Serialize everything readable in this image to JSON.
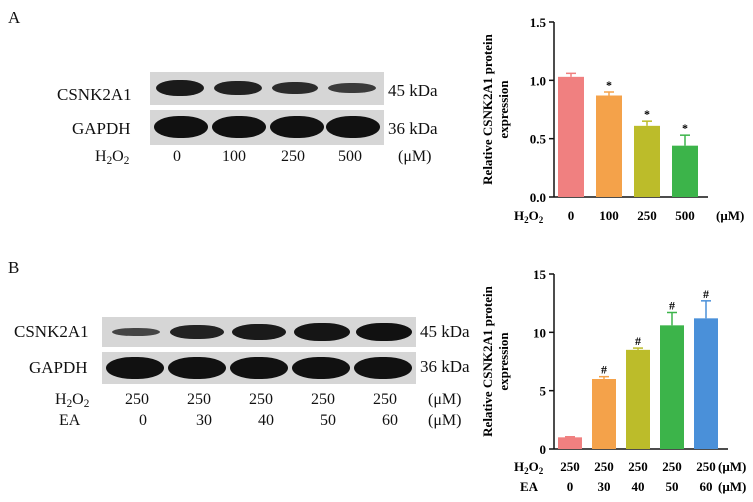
{
  "panelA": {
    "letter": "A",
    "blot": {
      "proteins": [
        {
          "name": "CSNK2A1",
          "mw": "45 kDa",
          "intensities": [
            0.95,
            0.85,
            0.72,
            0.6
          ]
        },
        {
          "name": "GAPDH",
          "mw": "36 kDa",
          "intensities": [
            1.0,
            1.0,
            1.0,
            1.0
          ]
        }
      ],
      "conditions": [
        {
          "label": "H",
          "label_sub": "2",
          "label_tail": "O",
          "label_sub2": "2",
          "values": [
            "0",
            "100",
            "250",
            "500"
          ],
          "unit": "(μM)"
        }
      ]
    }
  },
  "panelB": {
    "letter": "B",
    "blot": {
      "proteins": [
        {
          "name": "CSNK2A1",
          "mw": "45 kDa",
          "intensities": [
            0.45,
            0.82,
            0.9,
            0.95,
            1.0
          ]
        },
        {
          "name": "GAPDH",
          "mw": "36 kDa",
          "intensities": [
            1.0,
            1.0,
            1.0,
            1.0,
            1.0
          ]
        }
      ],
      "conditions": [
        {
          "label": "H",
          "label_sub": "2",
          "label_tail": "O",
          "label_sub2": "2",
          "values": [
            "250",
            "250",
            "250",
            "250",
            "250"
          ],
          "unit": "(μM)"
        },
        {
          "label": "EA",
          "values": [
            "0",
            "30",
            "40",
            "50",
            "60"
          ],
          "unit": "(μM)"
        }
      ]
    }
  },
  "chart_data": [
    {
      "type": "bar",
      "ylabel_line1": "Relative CSNK2A1 protein",
      "ylabel_line2": "expression",
      "ylim": [
        0,
        1.5
      ],
      "yticks": [
        "0.0",
        "0.5",
        "1.0",
        "1.5"
      ],
      "categories": [
        "0",
        "100",
        "250",
        "500"
      ],
      "values": [
        1.03,
        0.87,
        0.61,
        0.44
      ],
      "errors": [
        0.03,
        0.03,
        0.04,
        0.09
      ],
      "annotations": [
        "",
        "*",
        "*",
        "*"
      ],
      "colors": [
        "#f08080",
        "#f4a24a",
        "#bcbc2a",
        "#3cb44a"
      ],
      "xrows": [
        {
          "label": "H",
          "sub": "2",
          "tail": "O",
          "sub2": "2",
          "values": [
            "0",
            "100",
            "250",
            "500"
          ],
          "unit": "(μM)"
        }
      ]
    },
    {
      "type": "bar",
      "ylabel_line1": "Relative CSNK2A1 protein",
      "ylabel_line2": "expression",
      "ylim": [
        0,
        15
      ],
      "yticks": [
        "0",
        "5",
        "10",
        "15"
      ],
      "categories": [
        "0",
        "30",
        "40",
        "50",
        "60"
      ],
      "values": [
        1.0,
        6.0,
        8.5,
        10.6,
        11.2
      ],
      "errors": [
        0.05,
        0.2,
        0.15,
        1.1,
        1.5
      ],
      "annotations": [
        "",
        "#",
        "#",
        "#",
        "#"
      ],
      "colors": [
        "#f08080",
        "#f4a24a",
        "#bcbc2a",
        "#3cb44a",
        "#4a90d9"
      ],
      "xrows": [
        {
          "label": "H",
          "sub": "2",
          "tail": "O",
          "sub2": "2",
          "values": [
            "250",
            "250",
            "250",
            "250",
            "250"
          ],
          "unit": "(μM)"
        },
        {
          "label": "EA",
          "values": [
            "0",
            "30",
            "40",
            "50",
            "60"
          ],
          "unit": "(μM)"
        }
      ]
    }
  ]
}
